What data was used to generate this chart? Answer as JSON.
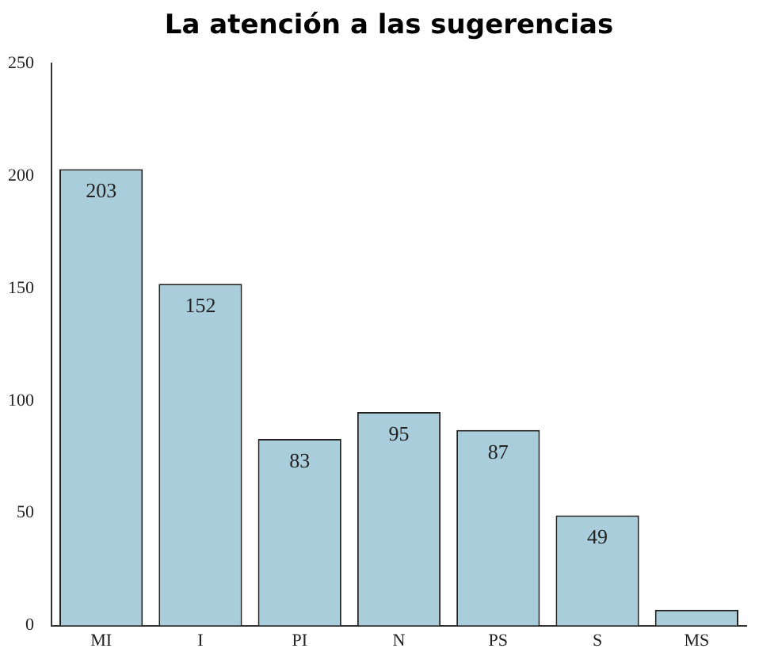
{
  "chart_data": {
    "type": "bar",
    "title": "La atención a las sugerencias",
    "categories": [
      "MI",
      "I",
      "PI",
      "N",
      "PS",
      "S",
      "MS"
    ],
    "values": [
      203,
      152,
      83,
      95,
      87,
      49,
      7
    ],
    "value_labels": [
      "203",
      "152",
      "83",
      "95",
      "87",
      "49",
      null
    ],
    "color": "#a9cddb",
    "ylim": [
      0,
      250
    ],
    "yticks": [
      0,
      50,
      100,
      150,
      200,
      250
    ],
    "grid": false,
    "legend": false
  }
}
